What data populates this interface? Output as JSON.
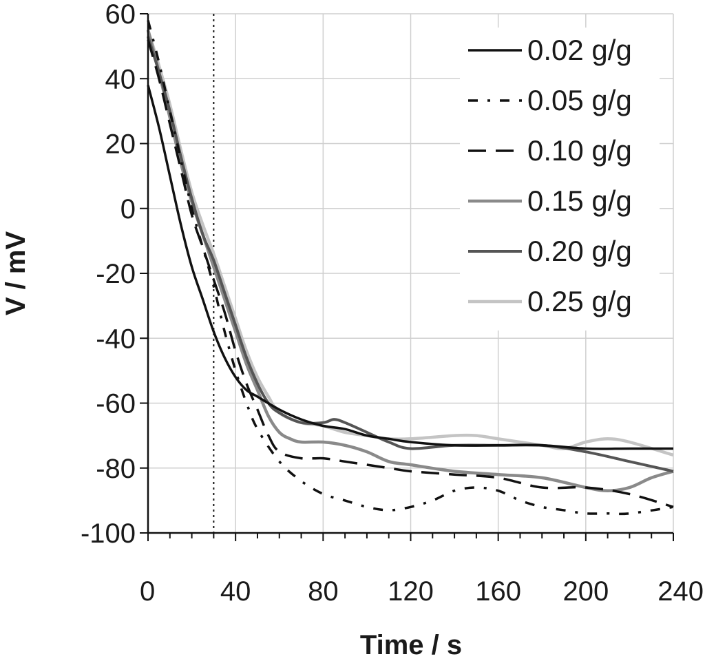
{
  "chart_data": {
    "type": "line",
    "title": "",
    "xlabel": "Time / s",
    "ylabel": "V / mV",
    "xlim": [
      0,
      240
    ],
    "ylim": [
      -100,
      60
    ],
    "xticks": [
      0,
      40,
      80,
      120,
      160,
      200,
      240
    ],
    "yticks": [
      -100,
      -80,
      -60,
      -40,
      -20,
      0,
      20,
      40,
      60
    ],
    "xtick_labels": [
      "0",
      "40",
      "80",
      "120",
      "160",
      "200",
      "240"
    ],
    "ytick_labels": [
      "-100",
      "-80",
      "-60",
      "-40",
      "-20",
      "0",
      "20",
      "40",
      "60"
    ],
    "grid": true,
    "legend_position": "top-right",
    "annotations": [
      {
        "type": "vertical-line",
        "x": 30,
        "style": "dotted"
      }
    ],
    "series": [
      {
        "name": "0.02 g/g",
        "color": "#111111",
        "style": "solid",
        "points": [
          [
            0,
            38
          ],
          [
            5,
            25
          ],
          [
            10,
            10
          ],
          [
            15,
            -5
          ],
          [
            20,
            -18
          ],
          [
            25,
            -28
          ],
          [
            30,
            -38
          ],
          [
            35,
            -46
          ],
          [
            40,
            -52
          ],
          [
            45,
            -56
          ],
          [
            50,
            -58
          ],
          [
            60,
            -62
          ],
          [
            70,
            -65
          ],
          [
            80,
            -67
          ],
          [
            90,
            -68
          ],
          [
            100,
            -70
          ],
          [
            110,
            -71
          ],
          [
            120,
            -72
          ],
          [
            140,
            -73
          ],
          [
            160,
            -73
          ],
          [
            180,
            -73
          ],
          [
            200,
            -74
          ],
          [
            220,
            -74
          ],
          [
            240,
            -74
          ]
        ]
      },
      {
        "name": "0.05 g/g",
        "color": "#111111",
        "style": "dashdot",
        "points": [
          [
            0,
            58
          ],
          [
            5,
            45
          ],
          [
            10,
            30
          ],
          [
            15,
            15
          ],
          [
            20,
            0
          ],
          [
            25,
            -12
          ],
          [
            30,
            -24
          ],
          [
            35,
            -38
          ],
          [
            40,
            -50
          ],
          [
            45,
            -60
          ],
          [
            50,
            -68
          ],
          [
            60,
            -78
          ],
          [
            70,
            -84
          ],
          [
            80,
            -88
          ],
          [
            90,
            -90
          ],
          [
            100,
            -92
          ],
          [
            110,
            -93
          ],
          [
            120,
            -92
          ],
          [
            130,
            -90
          ],
          [
            140,
            -87
          ],
          [
            150,
            -86
          ],
          [
            160,
            -87
          ],
          [
            170,
            -90
          ],
          [
            180,
            -92
          ],
          [
            190,
            -93
          ],
          [
            200,
            -94
          ],
          [
            210,
            -94
          ],
          [
            220,
            -94
          ],
          [
            240,
            -92
          ]
        ]
      },
      {
        "name": "0.10 g/g",
        "color": "#111111",
        "style": "dash",
        "points": [
          [
            0,
            52
          ],
          [
            5,
            40
          ],
          [
            10,
            26
          ],
          [
            15,
            12
          ],
          [
            20,
            -2
          ],
          [
            25,
            -12
          ],
          [
            30,
            -22
          ],
          [
            35,
            -32
          ],
          [
            40,
            -44
          ],
          [
            45,
            -54
          ],
          [
            50,
            -62
          ],
          [
            55,
            -70
          ],
          [
            60,
            -75
          ],
          [
            70,
            -77
          ],
          [
            80,
            -77
          ],
          [
            90,
            -78
          ],
          [
            100,
            -79
          ],
          [
            110,
            -80
          ],
          [
            120,
            -81
          ],
          [
            140,
            -82
          ],
          [
            160,
            -83
          ],
          [
            180,
            -86
          ],
          [
            200,
            -86
          ],
          [
            220,
            -88
          ],
          [
            240,
            -92
          ]
        ]
      },
      {
        "name": "0.15 g/g",
        "color": "#8a8a8a",
        "style": "solid",
        "points": [
          [
            0,
            55
          ],
          [
            5,
            42
          ],
          [
            10,
            28
          ],
          [
            15,
            14
          ],
          [
            20,
            2
          ],
          [
            25,
            -8
          ],
          [
            30,
            -18
          ],
          [
            35,
            -28
          ],
          [
            40,
            -38
          ],
          [
            45,
            -48
          ],
          [
            50,
            -56
          ],
          [
            55,
            -64
          ],
          [
            60,
            -69
          ],
          [
            65,
            -71
          ],
          [
            70,
            -72
          ],
          [
            80,
            -72
          ],
          [
            90,
            -73
          ],
          [
            100,
            -75
          ],
          [
            110,
            -78
          ],
          [
            120,
            -79
          ],
          [
            140,
            -81
          ],
          [
            160,
            -82
          ],
          [
            180,
            -83
          ],
          [
            200,
            -86
          ],
          [
            210,
            -87
          ],
          [
            220,
            -86
          ],
          [
            230,
            -83
          ],
          [
            240,
            -81
          ]
        ]
      },
      {
        "name": "0.20 g/g",
        "color": "#555555",
        "style": "solid",
        "points": [
          [
            0,
            53
          ],
          [
            5,
            42
          ],
          [
            10,
            30
          ],
          [
            15,
            16
          ],
          [
            20,
            3
          ],
          [
            25,
            -8
          ],
          [
            30,
            -16
          ],
          [
            35,
            -26
          ],
          [
            40,
            -36
          ],
          [
            45,
            -46
          ],
          [
            50,
            -54
          ],
          [
            55,
            -60
          ],
          [
            60,
            -63
          ],
          [
            70,
            -66
          ],
          [
            80,
            -66
          ],
          [
            85,
            -65
          ],
          [
            90,
            -66
          ],
          [
            100,
            -69
          ],
          [
            110,
            -72
          ],
          [
            120,
            -74
          ],
          [
            140,
            -73
          ],
          [
            160,
            -73
          ],
          [
            180,
            -73
          ],
          [
            200,
            -75
          ],
          [
            220,
            -78
          ],
          [
            240,
            -81
          ]
        ]
      },
      {
        "name": "0.25 g/g",
        "color": "#c4c4c4",
        "style": "solid",
        "points": [
          [
            0,
            55
          ],
          [
            5,
            44
          ],
          [
            10,
            32
          ],
          [
            15,
            18
          ],
          [
            20,
            5
          ],
          [
            25,
            -5
          ],
          [
            30,
            -14
          ],
          [
            35,
            -24
          ],
          [
            40,
            -34
          ],
          [
            45,
            -44
          ],
          [
            50,
            -52
          ],
          [
            55,
            -58
          ],
          [
            60,
            -63
          ],
          [
            70,
            -66
          ],
          [
            80,
            -67
          ],
          [
            90,
            -69
          ],
          [
            100,
            -70
          ],
          [
            110,
            -71
          ],
          [
            120,
            -71
          ],
          [
            140,
            -70
          ],
          [
            150,
            -70
          ],
          [
            160,
            -71
          ],
          [
            180,
            -73
          ],
          [
            190,
            -74
          ],
          [
            200,
            -72
          ],
          [
            210,
            -71
          ],
          [
            220,
            -72
          ],
          [
            240,
            -76
          ]
        ]
      }
    ]
  }
}
